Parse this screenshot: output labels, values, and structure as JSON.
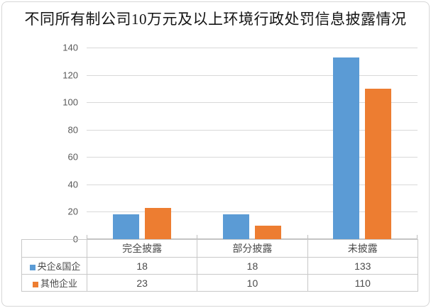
{
  "chart_data": {
    "type": "bar",
    "title": "不同所有制公司10万元及以上环境行政处罚信息披露情况",
    "categories": [
      "完全披露",
      "部分披露",
      "未披露"
    ],
    "series": [
      {
        "name": "央企&国企",
        "color": "#5B9BD5",
        "values": [
          18,
          18,
          133
        ]
      },
      {
        "name": "其他企业",
        "color": "#ED7D31",
        "values": [
          23,
          10,
          110
        ]
      }
    ],
    "xlabel": "",
    "ylabel": "",
    "ylim": [
      0,
      140
    ],
    "ytick_step": 20,
    "yticks": [
      0,
      20,
      40,
      60,
      80,
      100,
      120,
      140
    ],
    "grid": true,
    "legend_position": "data-table"
  },
  "colors": {
    "series1": "#5B9BD5",
    "series2": "#ED7D31",
    "gridline": "#D9D9D9",
    "axis_line": "#BFBFBF",
    "table_border": "#C8C8C8",
    "tick_text": "#595959",
    "table_text": "#4A4A4A",
    "title_text": "#141414",
    "frame_border": "#D6D6D6",
    "background": "#FFFFFF"
  }
}
